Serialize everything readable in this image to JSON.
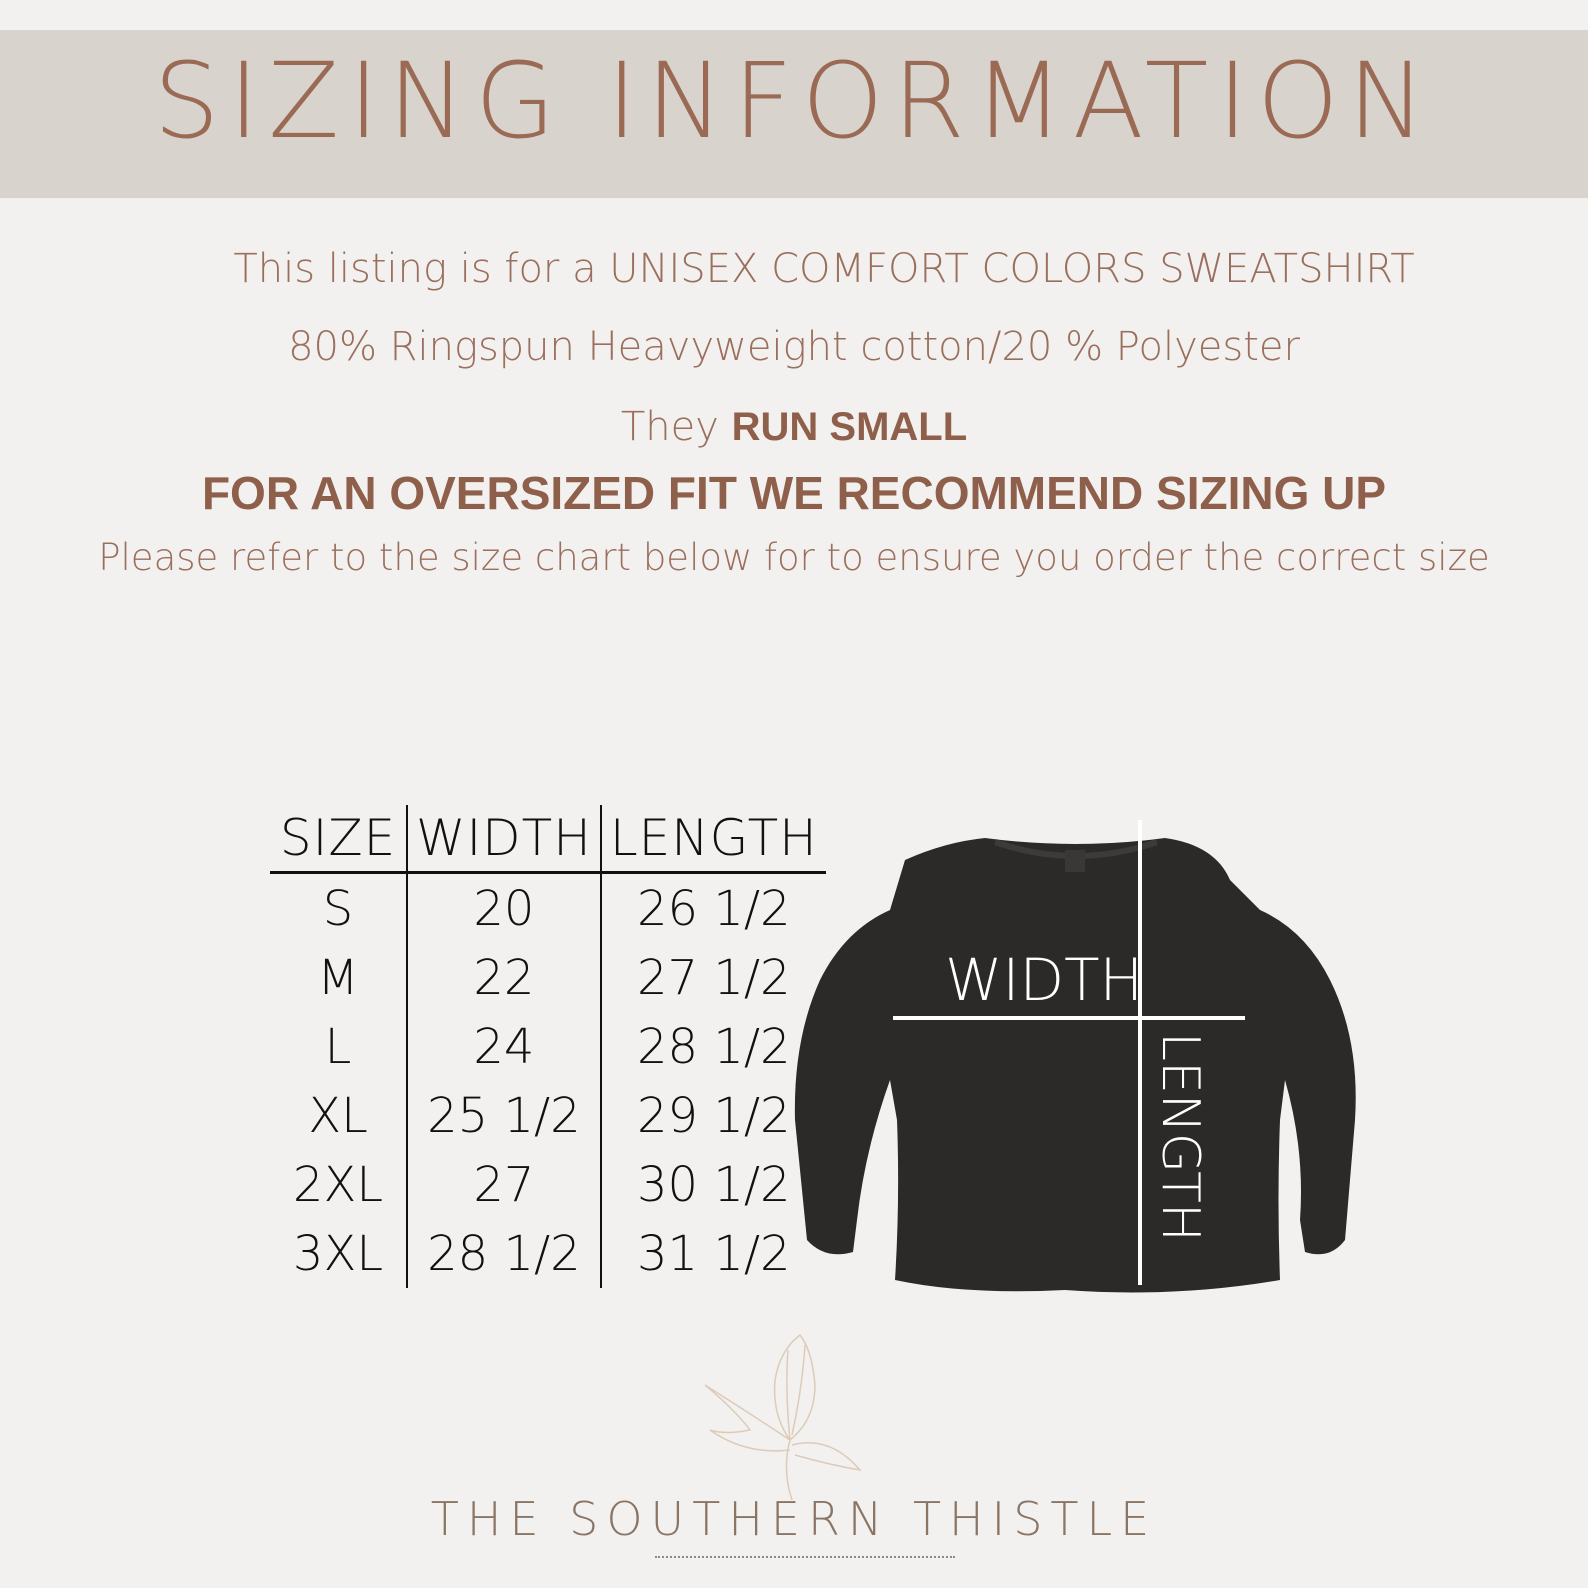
{
  "header": {
    "title": "SIZING INFORMATION"
  },
  "intro": {
    "line1": "This listing is for a UNISEX COMFORT COLORS SWEATSHIRT",
    "line2": "80% Ringspun Heavyweight cotton/20 % Polyester",
    "line3_prefix": "They",
    "line3_bold": "RUN SMALL",
    "line4": "FOR AN OVERSIZED FIT  WE RECOMMEND SIZING UP",
    "line5": "Please refer to the size chart below for to ensure you order the correct size"
  },
  "size_table": {
    "headers": [
      "SIZE",
      "WIDTH",
      "LENGTH"
    ],
    "rows": [
      [
        "S",
        "20",
        "26 1/2"
      ],
      [
        "M",
        "22",
        "27 1/2"
      ],
      [
        "L",
        "24",
        "28 1/2"
      ],
      [
        "XL",
        "25 1/2",
        "29 1/2"
      ],
      [
        "2XL",
        "27",
        "30 1/2"
      ],
      [
        "3XL",
        "28 1/2",
        "31 1/2"
      ]
    ]
  },
  "diagram": {
    "width_label": "WIDTH",
    "length_label": "LENGTH"
  },
  "brand": {
    "name": "THE SOUTHERN THISTLE"
  },
  "colors": {
    "background": "#f3f1ef",
    "band": "#d9d3cd",
    "text": "#9a6f5e",
    "shirt": "#2b2a29"
  }
}
